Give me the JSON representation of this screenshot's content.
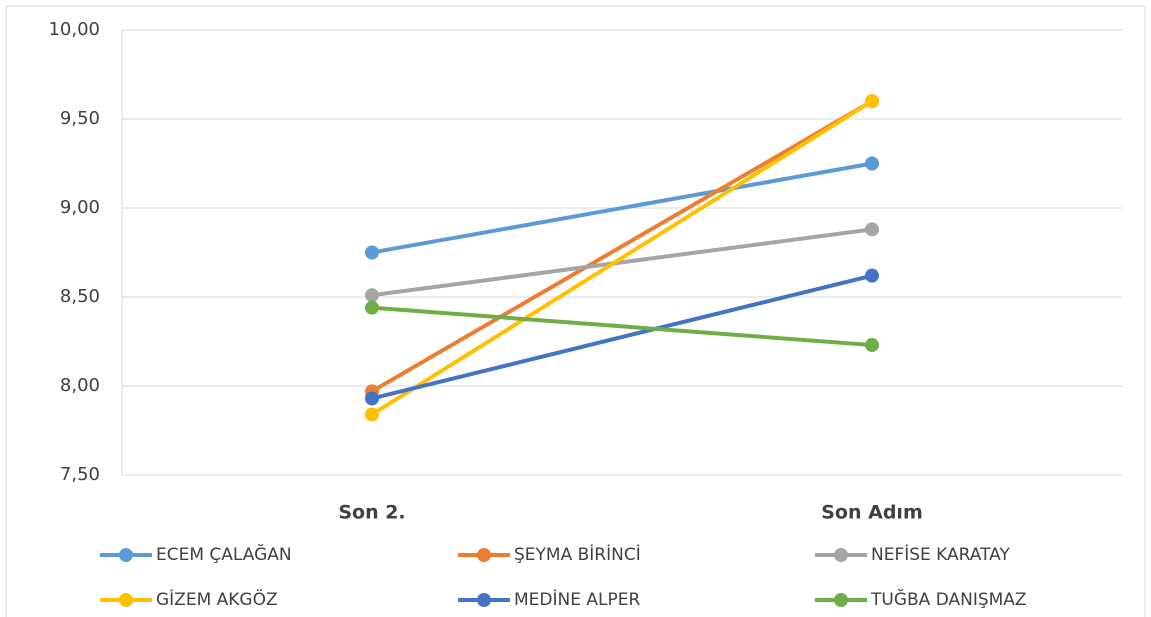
{
  "chart_data": {
    "type": "line",
    "categories": [
      "Son 2.",
      "Son Adım"
    ],
    "series": [
      {
        "name": "ECEM ÇALAĞAN",
        "color": "#5b9bd5",
        "values": [
          8.75,
          9.25
        ]
      },
      {
        "name": "ŞEYMA BİRİNCİ",
        "color": "#ed7d31",
        "values": [
          7.97,
          9.6
        ]
      },
      {
        "name": "NEFİSE KARATAY",
        "color": "#a5a5a5",
        "values": [
          8.51,
          8.88
        ]
      },
      {
        "name": "GİZEM AKGÖZ",
        "color": "#ffc000",
        "values": [
          7.84,
          9.6
        ]
      },
      {
        "name": "MEDİNE ALPER",
        "color": "#4472c4",
        "values": [
          7.93,
          8.62
        ]
      },
      {
        "name": "TUĞBA DANIŞMAZ",
        "color": "#70ad47",
        "values": [
          8.44,
          8.23
        ]
      }
    ],
    "ylim": [
      7.5,
      10
    ],
    "yticks": [
      {
        "value": 7.5,
        "label": "7,50"
      },
      {
        "value": 8,
        "label": "8,00"
      },
      {
        "value": 8.5,
        "label": "8,50"
      },
      {
        "value": 9,
        "label": "9,00"
      },
      {
        "value": 9.5,
        "label": "9,50"
      },
      {
        "value": 10,
        "label": "10,00"
      }
    ],
    "grid": true,
    "legend": "bottom"
  }
}
